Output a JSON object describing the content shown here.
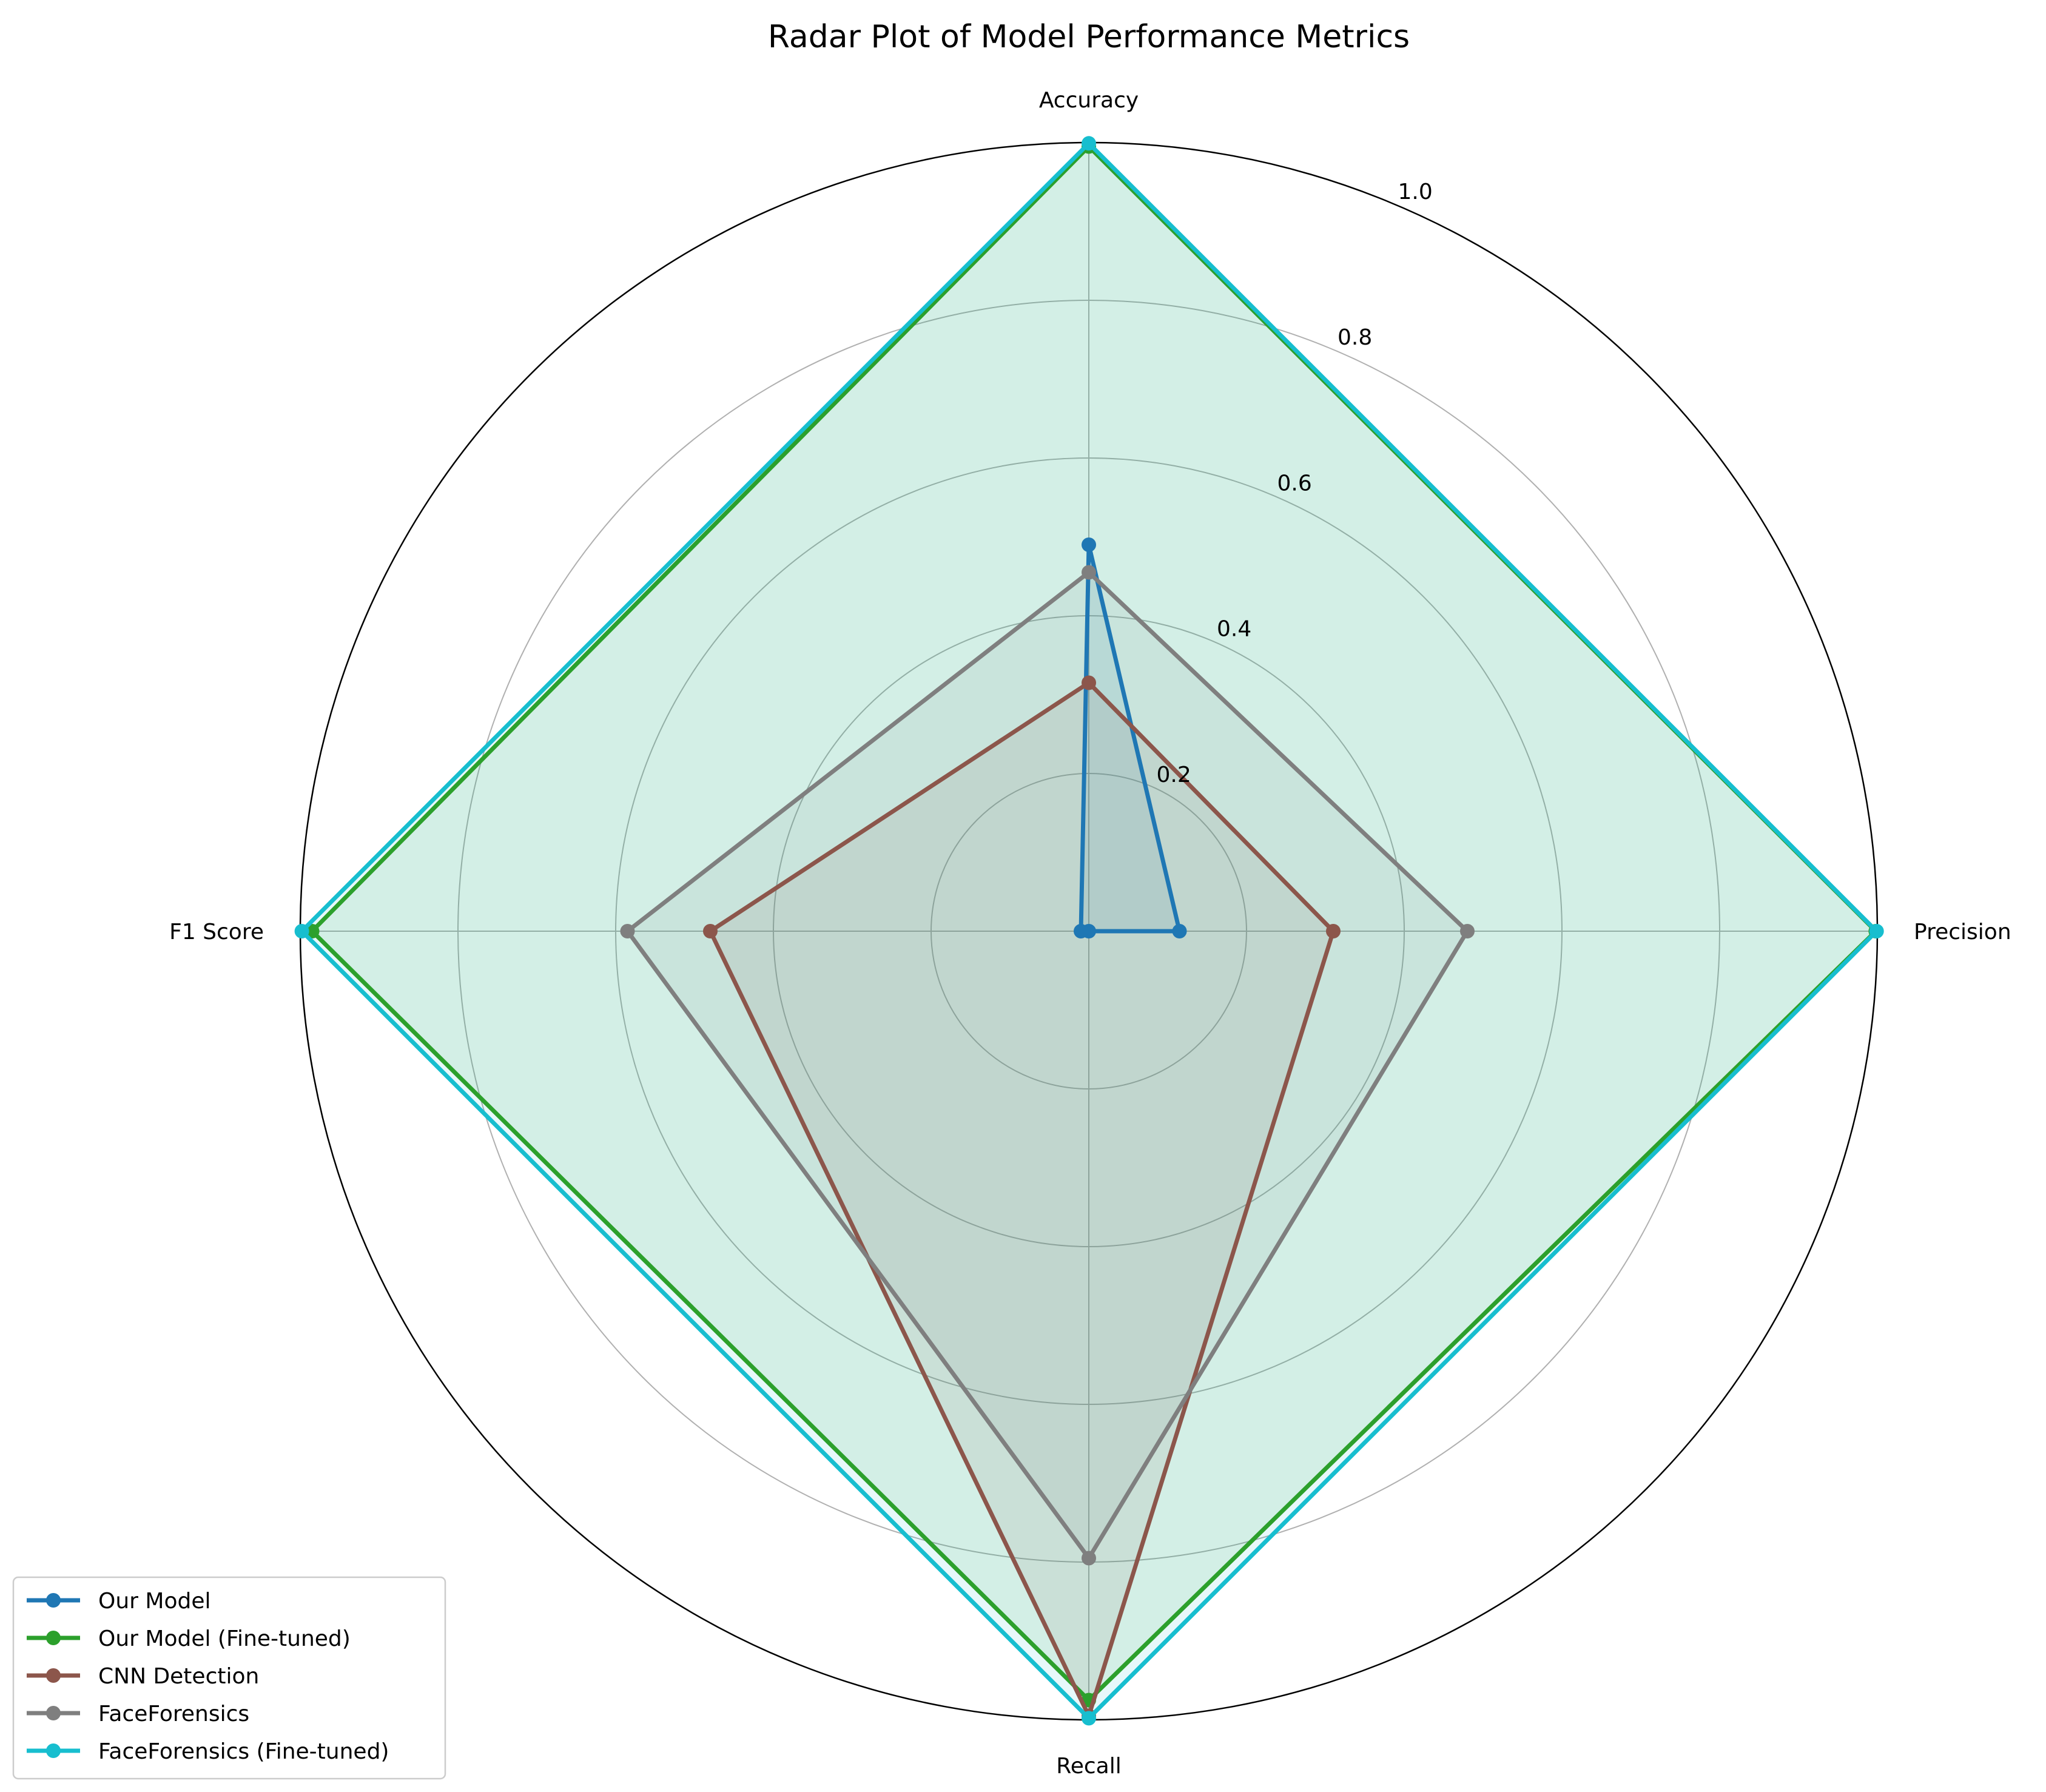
{
  "chart_data": {
    "type": "radar",
    "title": "Radar Plot of Model Performance Metrics",
    "categories": [
      "Accuracy",
      "Precision",
      "Recall",
      "F1 Score"
    ],
    "rlim": [
      0,
      1.0
    ],
    "r_ticks": [
      "0.2",
      "0.4",
      "0.6",
      "0.8",
      "1.0"
    ],
    "r_tick_values": [
      0.2,
      0.4,
      0.6,
      0.8,
      1.0
    ],
    "grid": true,
    "legend_position": "lower-left",
    "series": [
      {
        "name": "Our Model",
        "values": [
          0.49,
          0.115,
          0.0,
          0.01
        ],
        "color": "#1f77b4",
        "fill": "#1f77b4"
      },
      {
        "name": "Our Model (Fine-tuned)",
        "values": [
          0.995,
          0.998,
          0.975,
          0.985
        ],
        "color": "#2ca02c",
        "fill": "#2ca02c"
      },
      {
        "name": "CNN Detection",
        "values": [
          0.315,
          0.31,
          0.995,
          0.48
        ],
        "color": "#8c564b",
        "fill": "#8c564b"
      },
      {
        "name": "FaceForensics",
        "values": [
          0.455,
          0.48,
          0.795,
          0.585
        ],
        "color": "#7f7f7f",
        "fill": "#7f7f7f"
      },
      {
        "name": "FaceForensics (Fine-tuned)",
        "values": [
          0.999,
          0.999,
          0.998,
          0.998
        ],
        "color": "#17becf",
        "fill": "#17becf"
      }
    ]
  }
}
